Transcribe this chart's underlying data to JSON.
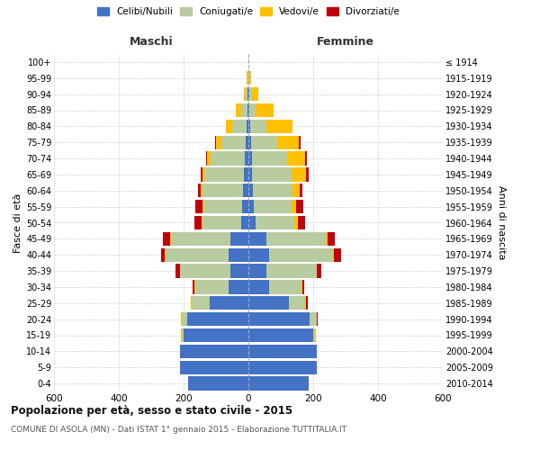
{
  "age_groups": [
    "0-4",
    "5-9",
    "10-14",
    "15-19",
    "20-24",
    "25-29",
    "30-34",
    "35-39",
    "40-44",
    "45-49",
    "50-54",
    "55-59",
    "60-64",
    "65-69",
    "70-74",
    "75-79",
    "80-84",
    "85-89",
    "90-94",
    "95-99",
    "100+"
  ],
  "birth_years": [
    "2010-2014",
    "2005-2009",
    "2000-2004",
    "1995-1999",
    "1990-1994",
    "1985-1989",
    "1980-1984",
    "1975-1979",
    "1970-1974",
    "1965-1969",
    "1960-1964",
    "1955-1959",
    "1950-1954",
    "1945-1949",
    "1940-1944",
    "1935-1939",
    "1930-1934",
    "1925-1929",
    "1920-1924",
    "1915-1919",
    "≤ 1914"
  ],
  "male": {
    "celibi": [
      185,
      210,
      210,
      200,
      190,
      120,
      60,
      55,
      60,
      55,
      22,
      20,
      18,
      15,
      12,
      8,
      5,
      3,
      2,
      1,
      0
    ],
    "coniugati": [
      0,
      0,
      0,
      5,
      15,
      55,
      105,
      155,
      195,
      185,
      120,
      120,
      125,
      120,
      105,
      75,
      45,
      18,
      5,
      2,
      0
    ],
    "vedovi": [
      0,
      0,
      0,
      2,
      2,
      2,
      2,
      2,
      2,
      2,
      2,
      3,
      5,
      8,
      12,
      18,
      20,
      18,
      8,
      2,
      0
    ],
    "divorziati": [
      0,
      0,
      0,
      2,
      2,
      2,
      5,
      12,
      12,
      22,
      22,
      22,
      8,
      5,
      2,
      2,
      0,
      0,
      0,
      0,
      0
    ]
  },
  "female": {
    "nubili": [
      185,
      210,
      210,
      200,
      190,
      125,
      65,
      55,
      65,
      55,
      22,
      18,
      15,
      12,
      10,
      8,
      5,
      3,
      2,
      1,
      0
    ],
    "coniugate": [
      0,
      0,
      0,
      5,
      20,
      50,
      100,
      155,
      195,
      185,
      120,
      115,
      120,
      120,
      110,
      80,
      50,
      20,
      8,
      2,
      0
    ],
    "vedove": [
      0,
      0,
      0,
      2,
      2,
      2,
      2,
      2,
      5,
      5,
      10,
      15,
      22,
      45,
      55,
      68,
      80,
      55,
      20,
      5,
      0
    ],
    "divorziate": [
      0,
      0,
      0,
      2,
      2,
      5,
      5,
      12,
      22,
      22,
      22,
      22,
      10,
      8,
      5,
      5,
      2,
      0,
      0,
      0,
      0
    ]
  },
  "colors": {
    "celibi_nubili": "#4472c4",
    "coniugati": "#b8cca0",
    "vedovi": "#ffc000",
    "divorziati": "#c0000c"
  },
  "title": "Popolazione per età, sesso e stato civile - 2015",
  "subtitle": "COMUNE DI ASOLA (MN) - Dati ISTAT 1° gennaio 2015 - Elaborazione TUTTITALIA.IT",
  "xlabel_left": "Maschi",
  "xlabel_right": "Femmine",
  "ylabel_left": "Fasce di età",
  "ylabel_right": "Anni di nascita",
  "xlim": 600,
  "legend_labels": [
    "Celibi/Nubili",
    "Coniugati/e",
    "Vedovi/e",
    "Divorziati/e"
  ],
  "background_color": "#ffffff",
  "grid_color": "#cccccc"
}
